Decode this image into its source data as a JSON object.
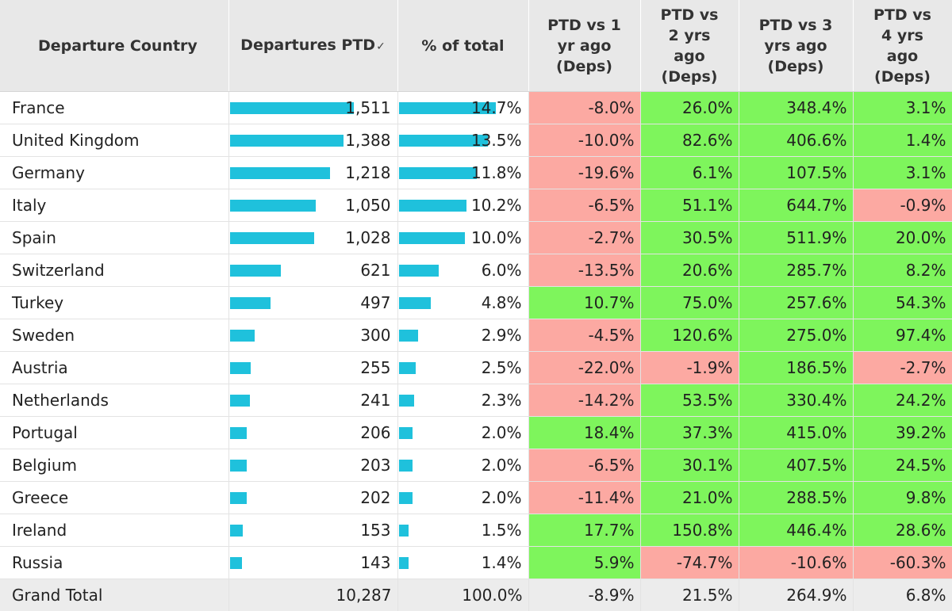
{
  "headers": {
    "country": "Departure Country",
    "departures": "Departures PTD",
    "pct_total": "% of total",
    "vs1": [
      "PTD vs 1",
      "yr ago",
      "(Deps)"
    ],
    "vs2": [
      "PTD vs",
      "2 yrs",
      "ago",
      "(Deps)"
    ],
    "vs3": [
      "PTD vs 3",
      "yrs ago",
      "(Deps)"
    ],
    "vs4": [
      "PTD vs",
      "4 yrs",
      "ago",
      "(Deps)"
    ]
  },
  "sort_icon": "✓",
  "max_departures": 1511,
  "colors": {
    "bar": "#1fc1dc",
    "positive": "#7ef55c",
    "negative": "#fca9a2"
  },
  "rows": [
    {
      "country": "France",
      "departures": "1,511",
      "dep_value": 1511,
      "pct": "14.7%",
      "pct_value": 14.7,
      "vs1": "-8.0%",
      "vs2": "26.0%",
      "vs3": "348.4%",
      "vs4": "3.1%"
    },
    {
      "country": "United Kingdom",
      "departures": "1,388",
      "dep_value": 1388,
      "pct": "13.5%",
      "pct_value": 13.5,
      "vs1": "-10.0%",
      "vs2": "82.6%",
      "vs3": "406.6%",
      "vs4": "1.4%"
    },
    {
      "country": "Germany",
      "departures": "1,218",
      "dep_value": 1218,
      "pct": "11.8%",
      "pct_value": 11.8,
      "vs1": "-19.6%",
      "vs2": "6.1%",
      "vs3": "107.5%",
      "vs4": "3.1%"
    },
    {
      "country": "Italy",
      "departures": "1,050",
      "dep_value": 1050,
      "pct": "10.2%",
      "pct_value": 10.2,
      "vs1": "-6.5%",
      "vs2": "51.1%",
      "vs3": "644.7%",
      "vs4": "-0.9%"
    },
    {
      "country": "Spain",
      "departures": "1,028",
      "dep_value": 1028,
      "pct": "10.0%",
      "pct_value": 10.0,
      "vs1": "-2.7%",
      "vs2": "30.5%",
      "vs3": "511.9%",
      "vs4": "20.0%"
    },
    {
      "country": "Switzerland",
      "departures": "621",
      "dep_value": 621,
      "pct": "6.0%",
      "pct_value": 6.0,
      "vs1": "-13.5%",
      "vs2": "20.6%",
      "vs3": "285.7%",
      "vs4": "8.2%"
    },
    {
      "country": "Turkey",
      "departures": "497",
      "dep_value": 497,
      "pct": "4.8%",
      "pct_value": 4.8,
      "vs1": "10.7%",
      "vs2": "75.0%",
      "vs3": "257.6%",
      "vs4": "54.3%"
    },
    {
      "country": "Sweden",
      "departures": "300",
      "dep_value": 300,
      "pct": "2.9%",
      "pct_value": 2.9,
      "vs1": "-4.5%",
      "vs2": "120.6%",
      "vs3": "275.0%",
      "vs4": "97.4%"
    },
    {
      "country": "Austria",
      "departures": "255",
      "dep_value": 255,
      "pct": "2.5%",
      "pct_value": 2.5,
      "vs1": "-22.0%",
      "vs2": "-1.9%",
      "vs3": "186.5%",
      "vs4": "-2.7%"
    },
    {
      "country": "Netherlands",
      "departures": "241",
      "dep_value": 241,
      "pct": "2.3%",
      "pct_value": 2.3,
      "vs1": "-14.2%",
      "vs2": "53.5%",
      "vs3": "330.4%",
      "vs4": "24.2%"
    },
    {
      "country": "Portugal",
      "departures": "206",
      "dep_value": 206,
      "pct": "2.0%",
      "pct_value": 2.0,
      "vs1": "18.4%",
      "vs2": "37.3%",
      "vs3": "415.0%",
      "vs4": "39.2%"
    },
    {
      "country": "Belgium",
      "departures": "203",
      "dep_value": 203,
      "pct": "2.0%",
      "pct_value": 2.0,
      "vs1": "-6.5%",
      "vs2": "30.1%",
      "vs3": "407.5%",
      "vs4": "24.5%"
    },
    {
      "country": "Greece",
      "departures": "202",
      "dep_value": 202,
      "pct": "2.0%",
      "pct_value": 2.0,
      "vs1": "-11.4%",
      "vs2": "21.0%",
      "vs3": "288.5%",
      "vs4": "9.8%"
    },
    {
      "country": "Ireland",
      "departures": "153",
      "dep_value": 153,
      "pct": "1.5%",
      "pct_value": 1.5,
      "vs1": "17.7%",
      "vs2": "150.8%",
      "vs3": "446.4%",
      "vs4": "28.6%"
    },
    {
      "country": "Russia",
      "departures": "143",
      "dep_value": 143,
      "pct": "1.4%",
      "pct_value": 1.4,
      "vs1": "5.9%",
      "vs2": "-74.7%",
      "vs3": "-10.6%",
      "vs4": "-60.3%"
    }
  ],
  "total": {
    "label": "Grand Total",
    "departures": "10,287",
    "pct": "100.0%",
    "vs1": "-8.9%",
    "vs2": "21.5%",
    "vs3": "264.9%",
    "vs4": "6.8%"
  }
}
